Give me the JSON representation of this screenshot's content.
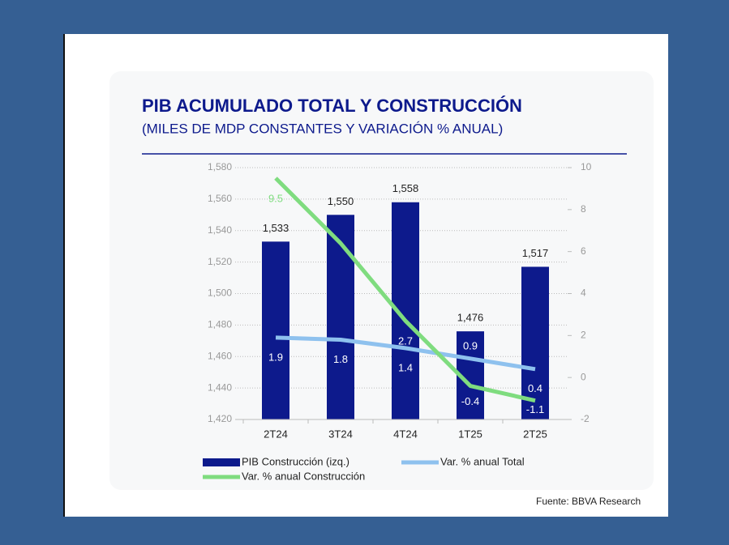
{
  "chart_data": {
    "type": "bar",
    "title": "PIB ACUMULADO TOTAL Y CONSTRUCCIÓN",
    "subtitle": "(MILES DE MDP CONSTANTES Y VARIACIÓN % ANUAL)",
    "source": "Fuente: BBVA Research",
    "categories": [
      "2T24",
      "3T24",
      "4T24",
      "1T25",
      "2T25"
    ],
    "series": [
      {
        "name": "PIB Construcción (izq.)",
        "type": "bar",
        "color": "#0d1a8c",
        "values": [
          1533,
          1550,
          1558,
          1476,
          1517
        ],
        "value_labels": [
          "1,533",
          "1,550",
          "1,558",
          "1,476",
          "1,517"
        ]
      },
      {
        "name": "Var. % anual Total",
        "type": "line",
        "axis": "y2",
        "color": "#8ec1ee",
        "values": [
          1.9,
          1.8,
          1.4,
          0.9,
          0.4
        ],
        "value_labels": [
          "1.9",
          "1.8",
          "1.4",
          "0.9",
          "0.4"
        ]
      },
      {
        "name": "Var. % anual Construcción",
        "type": "line",
        "axis": "y2",
        "color": "#7fdc7f",
        "values": [
          9.5,
          6.4,
          2.7,
          -0.4,
          -1.1
        ],
        "value_labels": [
          "9.5",
          null,
          "2.7",
          "-0.4",
          "-1.1"
        ]
      }
    ],
    "ylim": [
      1420,
      1580
    ],
    "yticks": [
      {
        "value": 1420,
        "label": "1,420"
      },
      {
        "value": 1440,
        "label": "1,440"
      },
      {
        "value": 1460,
        "label": "1,460"
      },
      {
        "value": 1480,
        "label": "1,480"
      },
      {
        "value": 1500,
        "label": "1,500"
      },
      {
        "value": 1520,
        "label": "1,520"
      },
      {
        "value": 1540,
        "label": "1,540"
      },
      {
        "value": 1560,
        "label": "1,560"
      },
      {
        "value": 1580,
        "label": "1,580"
      }
    ],
    "y2lim": [
      -2,
      10
    ],
    "y2ticks": [
      -2,
      0,
      2,
      4,
      6,
      8,
      10
    ],
    "grid": true
  }
}
